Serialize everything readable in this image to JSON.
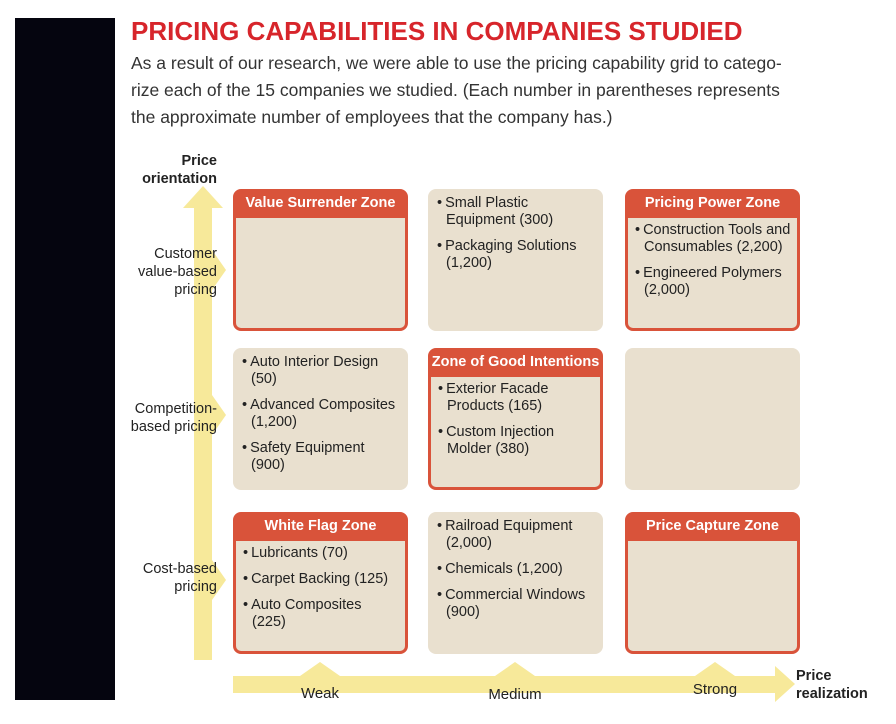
{
  "title": "PRICING CAPABILITIES IN COMPANIES STUDIED",
  "intro": [
    "As a result of our research, we were able to use the pricing capability grid to catego-",
    "rize each of the 15 companies we studied. (Each number in parentheses represents",
    "the approximate number of employees that the company has.)"
  ],
  "y_axis": {
    "title": [
      "Price",
      "orientation"
    ],
    "levels": [
      [
        "Customer",
        "value-based",
        "pricing"
      ],
      [
        "Competition-",
        "based pricing"
      ],
      [
        "Cost-based",
        "pricing"
      ]
    ]
  },
  "x_axis": {
    "title": [
      "Price",
      "realization"
    ],
    "levels": [
      "Weak",
      "Medium",
      "Strong"
    ]
  },
  "grid": {
    "rows": [
      {
        "cells": [
          {
            "zone": "Value Surrender Zone",
            "items": []
          },
          {
            "items": [
              "Small Plastic Equipment (300)",
              "Packaging Solutions (1,200)"
            ]
          },
          {
            "zone": "Pricing Power Zone",
            "items": [
              "Construction Tools and Consumables (2,200)",
              "Engineered Polymers (2,000)"
            ]
          }
        ]
      },
      {
        "cells": [
          {
            "items": [
              "Auto Interior Design (50)",
              "Advanced Composites (1,200)",
              "Safety Equipment (900)"
            ]
          },
          {
            "zone": "Zone of Good Intentions",
            "items": [
              "Exterior Facade Products (165)",
              "Custom Injection Molder (380)"
            ]
          },
          {
            "items": []
          }
        ]
      },
      {
        "cells": [
          {
            "zone": "White Flag Zone",
            "items": [
              "Lubricants (70)",
              "Carpet Backing (125)",
              "Auto Composites (225)"
            ]
          },
          {
            "items": [
              "Railroad Equipment (2,000)",
              "Chemicals (1,200)",
              "Commercial Windows (900)"
            ]
          },
          {
            "zone": "Price Capture Zone",
            "items": []
          }
        ]
      }
    ]
  }
}
